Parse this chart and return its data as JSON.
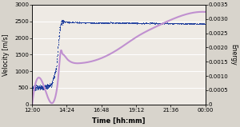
{
  "title": "",
  "xlabel": "Time [hh:mm]",
  "ylabel_left": "Velocity [m/s]",
  "ylabel_right": "Energy",
  "ylim_left": [
    0,
    3000
  ],
  "ylim_right": [
    0,
    0.0035
  ],
  "yticks_left": [
    0,
    500,
    1000,
    1500,
    2000,
    2500,
    3000
  ],
  "yticks_right": [
    0,
    0.0005,
    0.001,
    0.0015,
    0.002,
    0.0025,
    0.003,
    0.0035
  ],
  "xtick_labels": [
    "12:00",
    "14:24",
    "16:48",
    "19:12",
    "21:36",
    "00:00"
  ],
  "xlim": [
    0,
    720
  ],
  "xtick_positions": [
    0,
    144,
    288,
    432,
    576,
    720
  ],
  "velocity_color": "#1a3a9c",
  "energy_color": "#c090d0",
  "bg_color": "#d8d4cc",
  "plot_bg": "#eeeae4",
  "grid_color": "#ffffff",
  "velocity_data_x": [
    0,
    50,
    80,
    100,
    108,
    115,
    120,
    125,
    130,
    140,
    160,
    200,
    300,
    400,
    500,
    600,
    720
  ],
  "velocity_data_y": [
    500,
    520,
    600,
    1100,
    1800,
    2300,
    2480,
    2510,
    2500,
    2490,
    2480,
    2470,
    2460,
    2455,
    2450,
    2440,
    2430
  ],
  "energy_data_x": [
    0,
    80,
    100,
    108,
    115,
    120,
    125,
    130,
    140,
    160,
    200,
    280,
    360,
    440,
    520,
    600,
    720
  ],
  "energy_data_y": [
    0,
    5e-05,
    0.0004,
    0.0009,
    0.0016,
    0.0019,
    0.0018,
    0.00175,
    0.00165,
    0.0015,
    0.00145,
    0.0016,
    0.00195,
    0.0024,
    0.00275,
    0.00305,
    0.00325
  ],
  "ylabel_left_fontsize": 5.5,
  "ylabel_right_fontsize": 5.5,
  "xlabel_fontsize": 6,
  "tick_fontsize": 5
}
